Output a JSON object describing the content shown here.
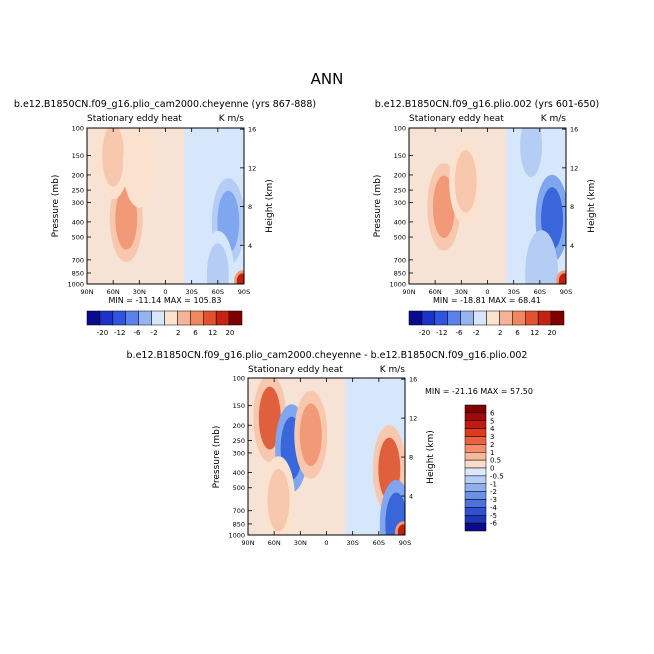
{
  "figure_title": "ANN",
  "chart_data": [
    {
      "type": "heatmap",
      "title": "b.e12.B1850CN.f09_g16.plio_cam2000.cheyenne (yrs 867-888)",
      "subtitle_left": "Stationary eddy heat",
      "subtitle_right": "K m/s",
      "xlabel": "",
      "ylabel": "Pressure (mb)",
      "ylabel_right": "Height (km)",
      "x_ticks": [
        "90N",
        "60N",
        "30N",
        "0",
        "30S",
        "60S",
        "90S"
      ],
      "y_ticks": [
        "100",
        "150",
        "200",
        "250",
        "300",
        "400",
        "500",
        "700",
        "850",
        "1000"
      ],
      "y_right_ticks": [
        "16",
        "12",
        "8",
        "4"
      ],
      "stats": "MIN = -11.14   MAX = 105.83",
      "min": -11.14,
      "max": 105.83,
      "colorbar_labels": [
        "-20",
        "-12",
        "-6",
        "-2",
        "2",
        "6",
        "12",
        "20"
      ],
      "features": [
        {
          "lat": 45,
          "p": 380,
          "value": 6
        },
        {
          "lat": 60,
          "p": 150,
          "value": 2
        },
        {
          "lat": 30,
          "p": 170,
          "value": 1
        },
        {
          "lat": -72,
          "p": 400,
          "value": -6
        },
        {
          "lat": -60,
          "p": 870,
          "value": -2
        },
        {
          "lat": -88,
          "p": 960,
          "value": 20
        }
      ]
    },
    {
      "type": "heatmap",
      "title": "b.e12.B1850CN.f09_g16.plio.002 (yrs 601-650)",
      "subtitle_left": "Stationary eddy heat",
      "subtitle_right": "K m/s",
      "xlabel": "",
      "ylabel": "Pressure (mb)",
      "ylabel_right": "Height (km)",
      "x_ticks": [
        "90N",
        "60N",
        "30N",
        "0",
        "30S",
        "60S",
        "90S"
      ],
      "y_ticks": [
        "100",
        "150",
        "200",
        "250",
        "300",
        "400",
        "500",
        "700",
        "850",
        "1000"
      ],
      "y_right_ticks": [
        "16",
        "12",
        "8",
        "4"
      ],
      "stats": "MIN = -18.81   MAX = 68.41",
      "min": -18.81,
      "max": 68.41,
      "colorbar_labels": [
        "-20",
        "-12",
        "-6",
        "-2",
        "2",
        "6",
        "12",
        "20"
      ],
      "features": [
        {
          "lat": 50,
          "p": 320,
          "value": 8
        },
        {
          "lat": 25,
          "p": 220,
          "value": 2
        },
        {
          "lat": -50,
          "p": 130,
          "value": -2
        },
        {
          "lat": -74,
          "p": 380,
          "value": -10
        },
        {
          "lat": -62,
          "p": 860,
          "value": -3
        },
        {
          "lat": -88,
          "p": 960,
          "value": 20
        }
      ]
    },
    {
      "type": "heatmap",
      "title": "b.e12.B1850CN.f09_g16.plio_cam2000.cheyenne - b.e12.B1850CN.f09_g16.plio.002",
      "subtitle_left": "Stationary eddy heat",
      "subtitle_right": "K m/s",
      "xlabel": "",
      "ylabel": "Pressure (mb)",
      "ylabel_right": "Height (km)",
      "x_ticks": [
        "90N",
        "60N",
        "30N",
        "0",
        "30S",
        "60S",
        "90S"
      ],
      "y_ticks": [
        "100",
        "150",
        "200",
        "250",
        "300",
        "400",
        "500",
        "700",
        "850",
        "1000"
      ],
      "y_right_ticks": [
        "16",
        "12",
        "8",
        "4"
      ],
      "stats": "MIN = -21.16   MAX = 57.50",
      "min": -21.16,
      "max": 57.5,
      "colorbar_labels": [
        "6",
        "5",
        "4",
        "3",
        "2",
        "1",
        "0.5",
        "0",
        "-0.5",
        "-1",
        "-2",
        "-3",
        "-4",
        "-5",
        "-6"
      ],
      "features": [
        {
          "lat": 65,
          "p": 180,
          "value": 4
        },
        {
          "lat": 40,
          "p": 280,
          "value": -3
        },
        {
          "lat": 18,
          "p": 230,
          "value": 2
        },
        {
          "lat": 55,
          "p": 600,
          "value": 1
        },
        {
          "lat": -72,
          "p": 380,
          "value": 4
        },
        {
          "lat": -80,
          "p": 850,
          "value": -3
        },
        {
          "lat": -88,
          "p": 960,
          "value": 6
        }
      ]
    }
  ]
}
